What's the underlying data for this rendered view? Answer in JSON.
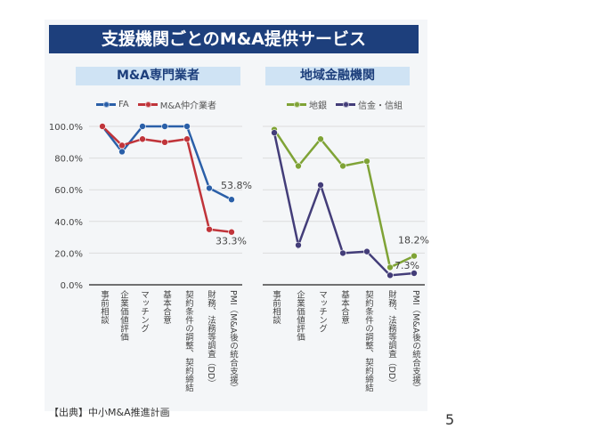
{
  "title": "支援機関ごとのM&A提供サービス",
  "source": "【出典】中小M&A推進計画",
  "page_number": "5",
  "chart_data": [
    {
      "type": "line",
      "title": "M&A専門業者",
      "categories": [
        "事前相談",
        "企業価値評価",
        "マッチング",
        "基本合意",
        "契約条件の調整、契約締結",
        "財務、法務等調査（DD）",
        "PMI（M&A後の統合支援）"
      ],
      "ylim": [
        0,
        100
      ],
      "yticks": [
        "0.0%",
        "20.0%",
        "40.0%",
        "60.0%",
        "80.0%",
        "100.0%"
      ],
      "grid": true,
      "legend": "top",
      "series": [
        {
          "name": "FA",
          "color": "#2a5fa8",
          "values": [
            100,
            84,
            100,
            100,
            100,
            61,
            53.8
          ]
        },
        {
          "name": "M&A仲介業者",
          "color": "#c0343a",
          "values": [
            100,
            88,
            92,
            90,
            92,
            35,
            33.3
          ]
        }
      ],
      "annotations": [
        {
          "series": 0,
          "label": "53.8%"
        },
        {
          "series": 1,
          "label": "33.3%"
        }
      ]
    },
    {
      "type": "line",
      "title": "地域金融機関",
      "categories": [
        "事前相談",
        "企業価値評価",
        "マッチング",
        "基本合意",
        "契約条件の調整、契約締結",
        "財務、法務等調査（DD）",
        "PMI（M&A後の統合支援）"
      ],
      "ylim": [
        0,
        100
      ],
      "grid": true,
      "legend": "top",
      "series": [
        {
          "name": "地銀",
          "color": "#7fa336",
          "values": [
            98,
            75,
            92,
            75,
            78,
            11,
            18.2
          ]
        },
        {
          "name": "信金・信組",
          "color": "#433d79",
          "values": [
            96,
            25,
            63,
            20,
            21,
            6,
            7.3
          ]
        }
      ],
      "annotations": [
        {
          "series": 0,
          "label": "18.2%"
        },
        {
          "series": 1,
          "label": "7.3%"
        }
      ]
    }
  ]
}
